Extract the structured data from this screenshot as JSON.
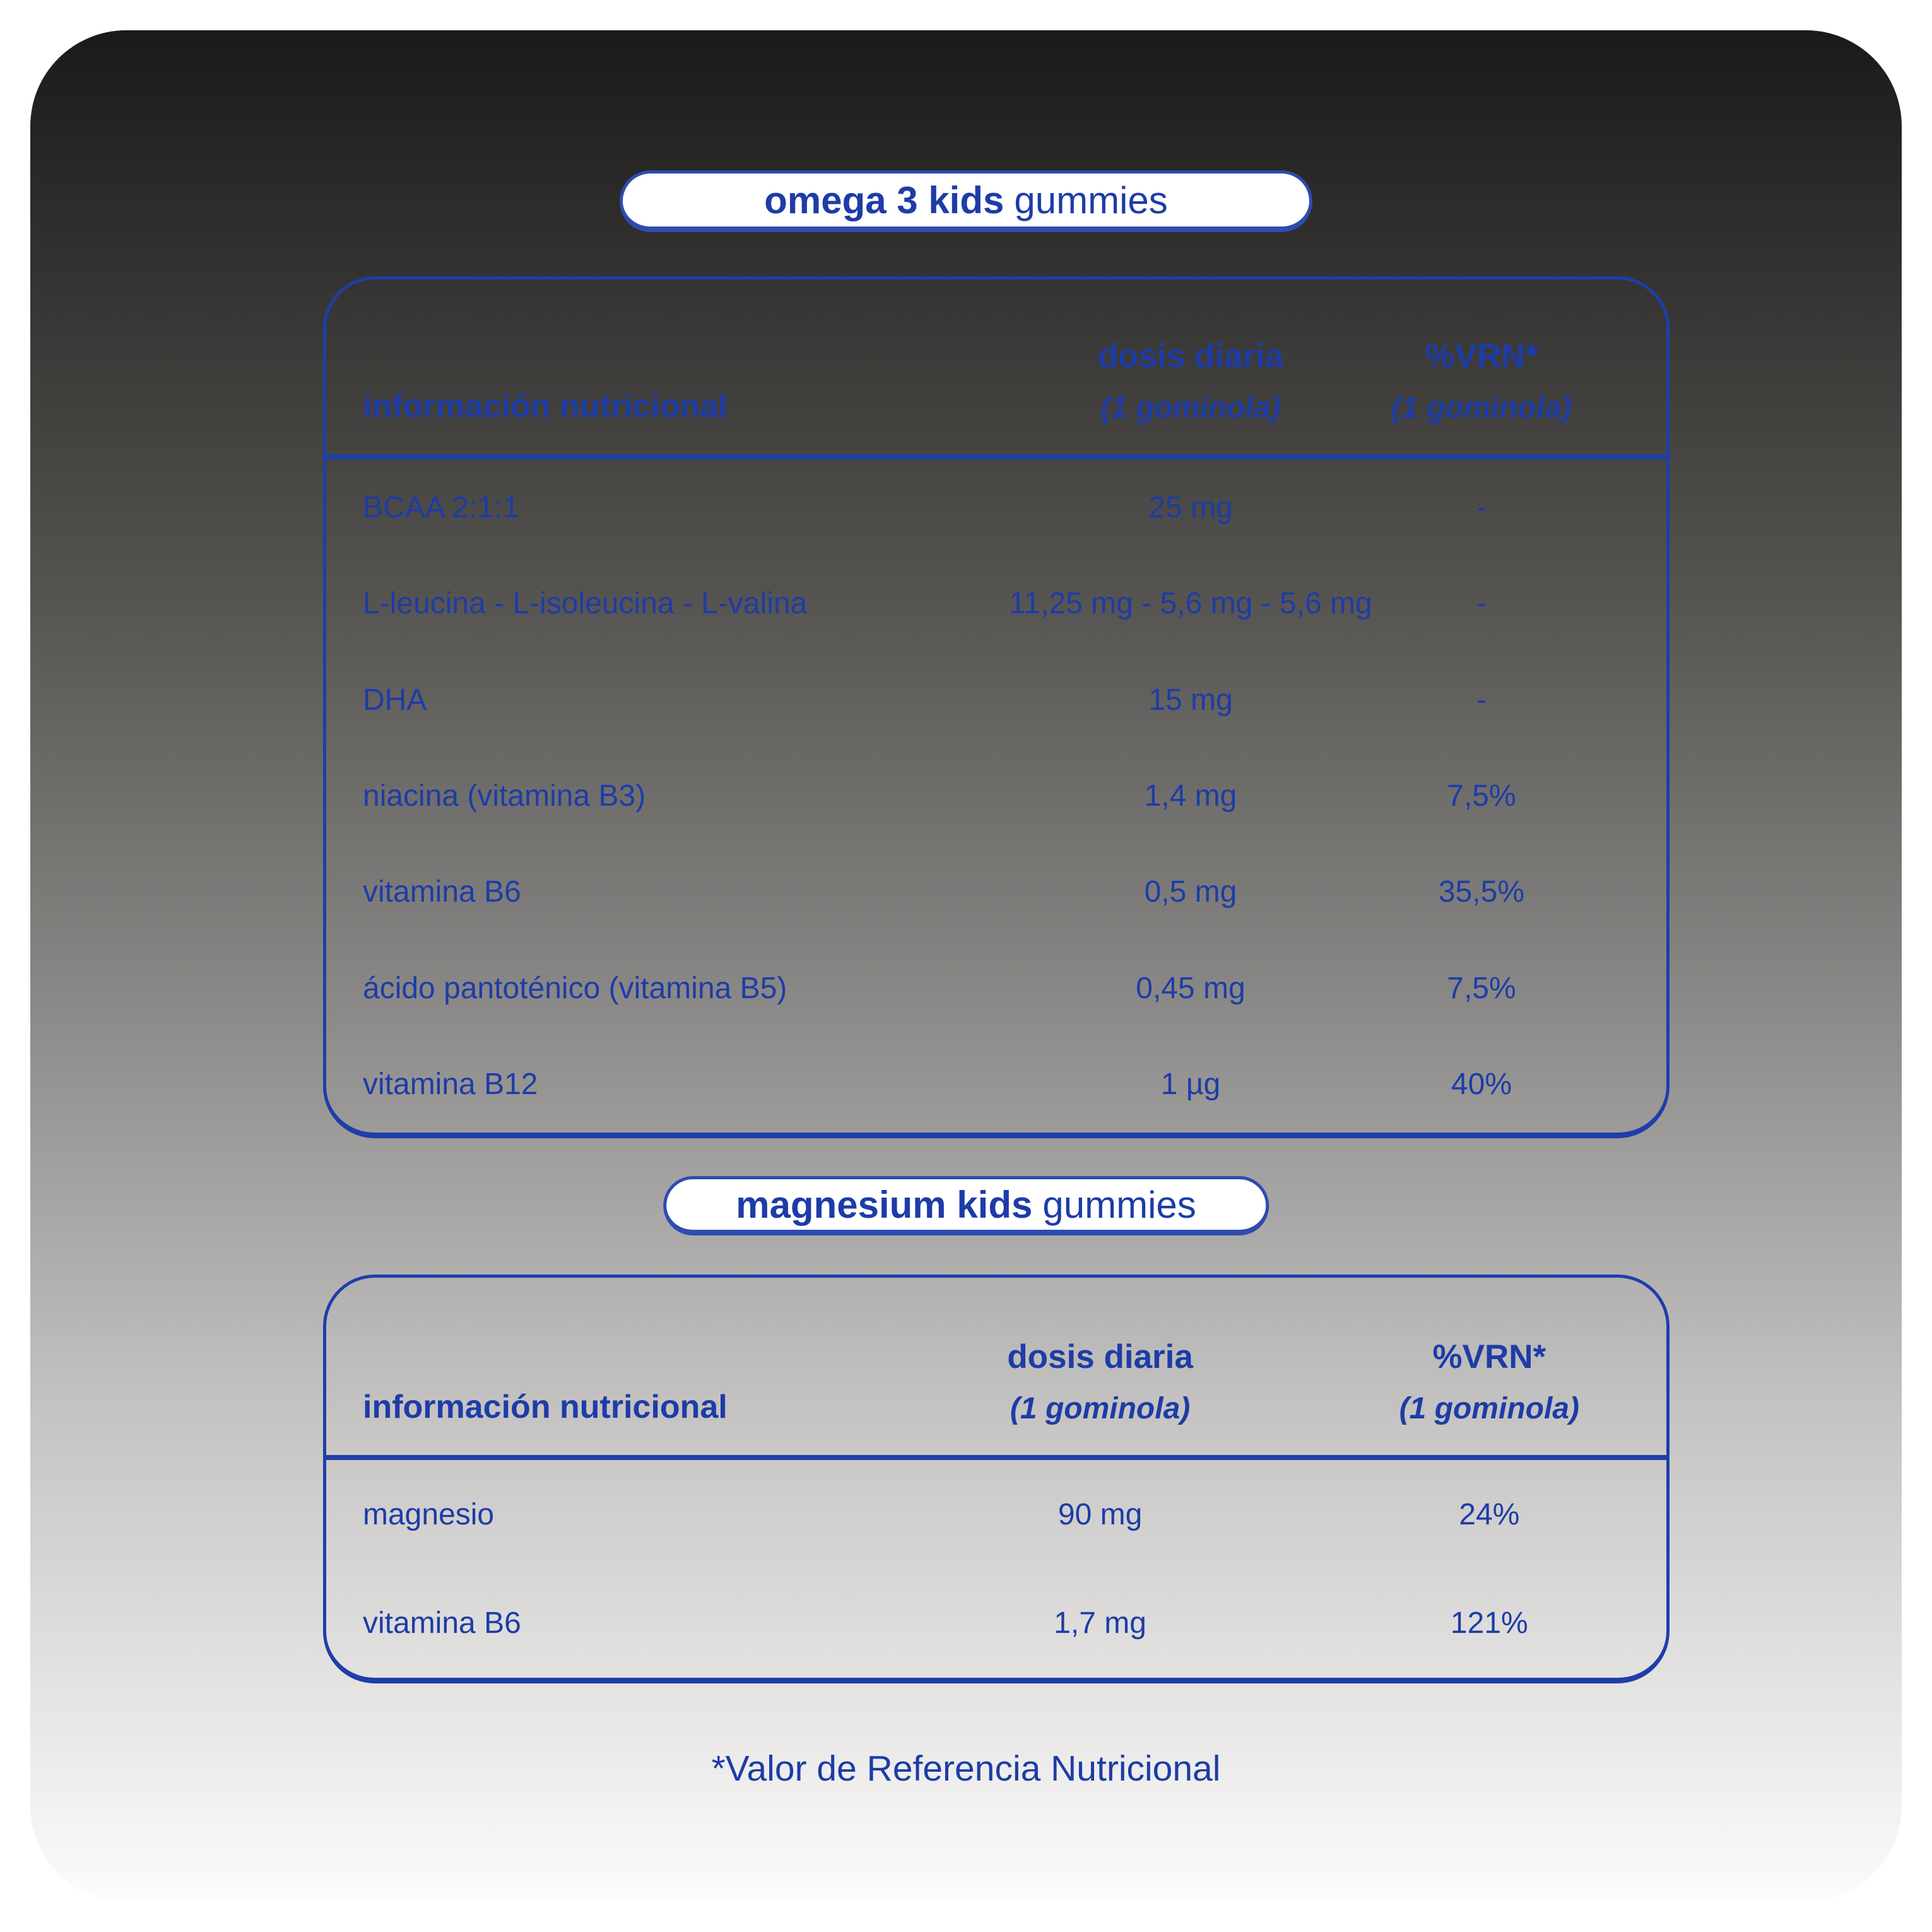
{
  "colors": {
    "accent_blue": "#1d3ca7",
    "table_border_blue": "#1e3ea9",
    "pill_border_blue": "#2e4bb0",
    "card_gradient_top": "#1b1a19",
    "card_gradient_bottom": "#fcfcfb"
  },
  "pill_omega": {
    "bold": "omega 3 kids",
    "regular": "gummies"
  },
  "table_omega": {
    "header": {
      "col1": "información nutricional",
      "col2_title": "dosis diaria",
      "col2_sub": "(1 gominola)",
      "col3_title": "%VRN*",
      "col3_sub": "(1 gominola)"
    },
    "rows": [
      {
        "label": "BCAA 2:1:1",
        "dose": "25 mg",
        "vrn": "-"
      },
      {
        "label": "L-leucina - L-isoleucina - L-valina",
        "dose": "11,25 mg - 5,6 mg - 5,6 mg",
        "vrn": "-"
      },
      {
        "label": "DHA",
        "dose": "15 mg",
        "vrn": "-"
      },
      {
        "label": "niacina (vitamina B3)",
        "dose": "1,4 mg",
        "vrn": "7,5%"
      },
      {
        "label": "vitamina B6",
        "dose": "0,5 mg",
        "vrn": "35,5%"
      },
      {
        "label": "ácido pantoténico (vitamina B5)",
        "dose": "0,45 mg",
        "vrn": "7,5%"
      },
      {
        "label": "vitamina B12",
        "dose": "1 µg",
        "vrn": "40%"
      }
    ]
  },
  "pill_magnesium": {
    "bold": "magnesium kids",
    "regular": "gummies"
  },
  "table_magnesium": {
    "header": {
      "col1": "información nutricional",
      "col2_title": "dosis diaria",
      "col2_sub": "(1 gominola)",
      "col3_title": "%VRN*",
      "col3_sub": "(1 gominola)"
    },
    "rows": [
      {
        "label": "magnesio",
        "dose": "90 mg",
        "vrn": "24%"
      },
      {
        "label": "vitamina B6",
        "dose": "1,7 mg",
        "vrn": "121%"
      }
    ]
  },
  "footnote": "*Valor de Referencia Nutricional"
}
